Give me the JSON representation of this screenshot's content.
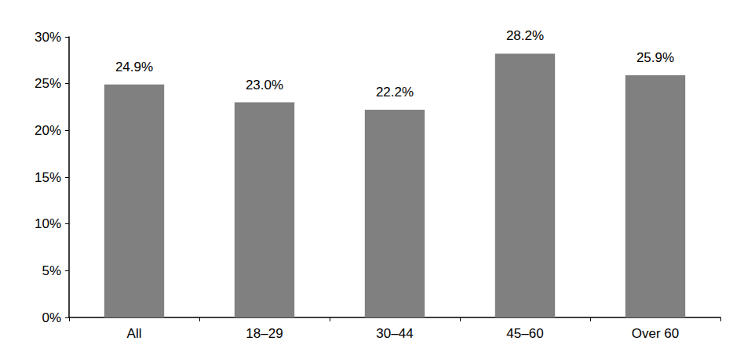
{
  "chart_data": {
    "type": "bar",
    "categories": [
      "All",
      "18–29",
      "30–44",
      "45–60",
      "Over 60"
    ],
    "values": [
      24.9,
      23.0,
      22.2,
      28.2,
      25.9
    ],
    "value_labels": [
      "24.9%",
      "23.0%",
      "22.2%",
      "28.2%",
      "25.9%"
    ],
    "color": "#808080",
    "ylim": [
      0,
      30
    ],
    "yticks": [
      {
        "value": 0,
        "label": "0%"
      },
      {
        "value": 5,
        "label": "5%"
      },
      {
        "value": 10,
        "label": "10%"
      },
      {
        "value": 15,
        "label": "15%"
      },
      {
        "value": 20,
        "label": "20%"
      },
      {
        "value": 25,
        "label": "25%"
      },
      {
        "value": 30,
        "label": "30%"
      }
    ],
    "grid": false,
    "data_labels": true
  }
}
